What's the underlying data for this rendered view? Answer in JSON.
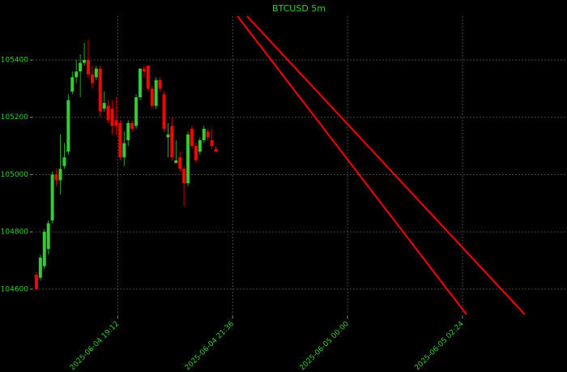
{
  "chart_data": {
    "type": "candlestick",
    "title": "BTCUSD 5m",
    "x": [
      "2025-06-04 17:30",
      "2025-06-04 17:35",
      "2025-06-04 17:40",
      "2025-06-04 17:45",
      "2025-06-04 17:50",
      "2025-06-04 17:55",
      "2025-06-04 18:00",
      "2025-06-04 18:05",
      "2025-06-04 18:10",
      "2025-06-04 18:15",
      "2025-06-04 18:20",
      "2025-06-04 18:25",
      "2025-06-04 18:30",
      "2025-06-04 18:35",
      "2025-06-04 18:40",
      "2025-06-04 18:45",
      "2025-06-04 18:50",
      "2025-06-04 18:55",
      "2025-06-04 19:00",
      "2025-06-04 19:05",
      "2025-06-04 19:10",
      "2025-06-04 19:15",
      "2025-06-04 19:20",
      "2025-06-04 19:25",
      "2025-06-04 19:30",
      "2025-06-04 19:35",
      "2025-06-04 19:40",
      "2025-06-04 19:45",
      "2025-06-04 19:50",
      "2025-06-04 19:55",
      "2025-06-04 20:00",
      "2025-06-04 20:05",
      "2025-06-04 20:10",
      "2025-06-04 20:15",
      "2025-06-04 20:20",
      "2025-06-04 20:25",
      "2025-06-04 20:30",
      "2025-06-04 20:35",
      "2025-06-04 20:40",
      "2025-06-04 20:45",
      "2025-06-04 20:50",
      "2025-06-04 20:55",
      "2025-06-04 21:00",
      "2025-06-04 21:05",
      "2025-06-04 21:10",
      "2025-06-04 21:15"
    ],
    "open": [
      104650,
      104640,
      104680,
      104740,
      104840,
      105000,
      104980,
      105030,
      105080,
      105290,
      105340,
      105360,
      105390,
      105400,
      105350,
      105340,
      105370,
      105230,
      105240,
      105230,
      105190,
      105180,
      105060,
      105120,
      105180,
      105170,
      105270,
      105370,
      105380,
      105300,
      105240,
      105330,
      105280,
      105130,
      105170,
      105040,
      105060,
      105020,
      104970,
      105160,
      105100,
      105080,
      105120,
      105150,
      105120,
      105090
    ],
    "high": [
      104660,
      104720,
      104810,
      104840,
      105010,
      105020,
      105140,
      105110,
      105280,
      105360,
      105400,
      105420,
      105460,
      105470,
      105380,
      105380,
      105380,
      105290,
      105260,
      105260,
      105270,
      105190,
      105150,
      105190,
      105190,
      105280,
      105370,
      105380,
      105380,
      105310,
      105340,
      105340,
      105290,
      105180,
      105200,
      105120,
      105080,
      105030,
      105150,
      105170,
      105110,
      105130,
      105170,
      105160,
      105160,
      105100
    ],
    "low": [
      104600,
      104630,
      104670,
      104720,
      104830,
      104960,
      104930,
      105020,
      105070,
      105280,
      105320,
      105270,
      105380,
      105340,
      105300,
      105330,
      105200,
      105220,
      105180,
      105140,
      105140,
      105050,
      105030,
      105100,
      105150,
      105160,
      105260,
      105340,
      105290,
      105230,
      105230,
      105290,
      105150,
      105060,
      105050,
      105040,
      105010,
      104890,
      104960,
      105090,
      105040,
      105070,
      105110,
      105120,
      105090,
      105080
    ],
    "close": [
      104600,
      104710,
      104800,
      104830,
      105000,
      104980,
      105020,
      105060,
      105260,
      105340,
      105360,
      105390,
      105400,
      105350,
      105320,
      105370,
      105220,
      105250,
      105190,
      105170,
      105170,
      105060,
      105110,
      105180,
      105160,
      105270,
      105370,
      105360,
      105300,
      105240,
      105330,
      105300,
      105160,
      105140,
      105060,
      105050,
      105020,
      104970,
      105140,
      105100,
      105050,
      105120,
      105160,
      105130,
      105100,
      105080
    ],
    "up_color": "#32cd32",
    "down_color": "#ff0000",
    "lines": [
      {
        "color": "#ff0000",
        "x": [
          "2025-06-04 21:42",
          "2025-06-05 02:29"
        ],
        "values": [
          105553,
          104512
        ]
      },
      {
        "color": "#ff0000",
        "x": [
          "2025-06-04 21:54",
          "2025-06-05 03:42"
        ],
        "values": [
          105553,
          104512
        ]
      }
    ],
    "xlim": [
      "2025-06-04 17:25",
      "2025-06-05 04:35"
    ],
    "ylim": [
      104506,
      105553
    ],
    "xticks": [
      "2025-06-04 19:12",
      "2025-06-04 21:36",
      "2025-06-05 00:00",
      "2025-06-05 02:24"
    ],
    "yticks": [
      104600,
      104800,
      105000,
      105200,
      105400
    ],
    "grid": true
  }
}
